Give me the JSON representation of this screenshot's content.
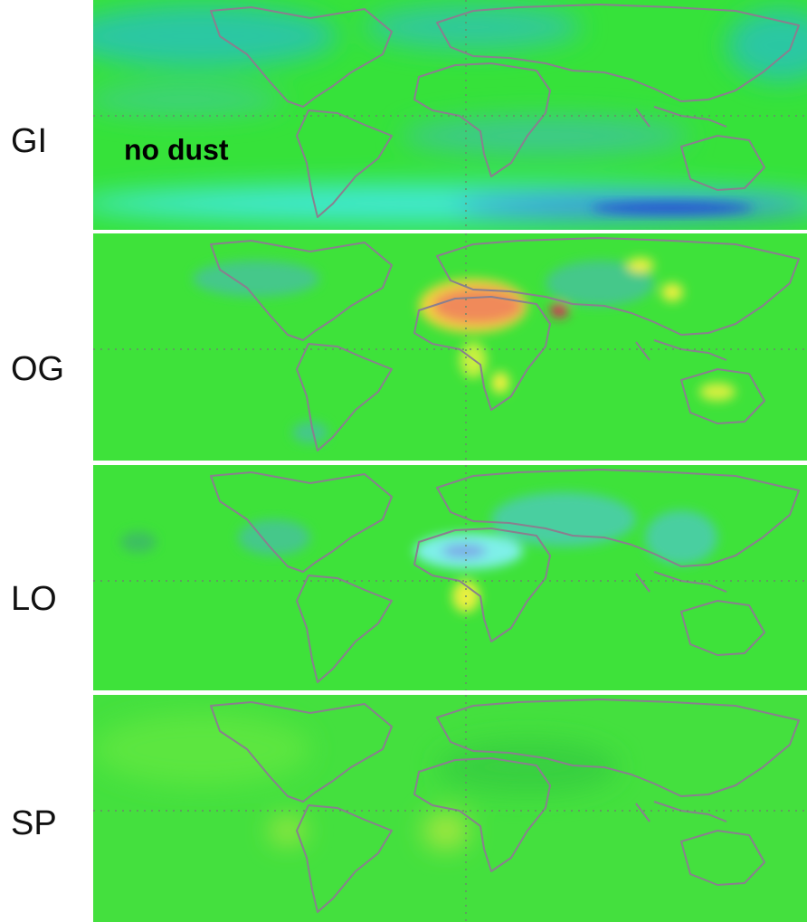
{
  "panels": [
    {
      "label": "GI",
      "annotation": "no dust"
    },
    {
      "label": "OG"
    },
    {
      "label": "LO"
    },
    {
      "label": "SP"
    }
  ]
}
